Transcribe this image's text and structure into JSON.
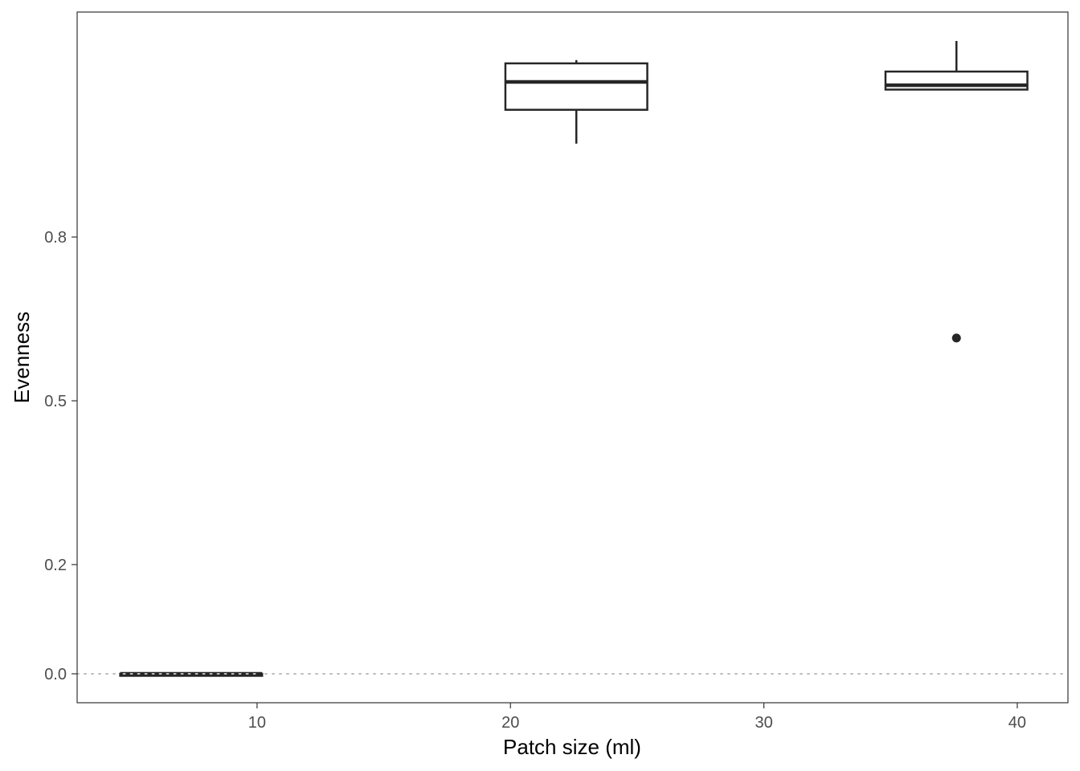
{
  "chart_data": {
    "type": "boxplot",
    "title": "",
    "xlabel": "Patch size (ml)",
    "ylabel": "Evenness",
    "xlim": [
      2.9,
      42.0
    ],
    "ylim": [
      -0.053,
      1.212
    ],
    "x_ticks": [
      10,
      20,
      30,
      40
    ],
    "y_ticks": [
      0.0,
      0.2,
      0.5,
      0.8
    ],
    "y_tick_labels": [
      "0.0",
      "0.2",
      "0.5",
      "0.8"
    ],
    "grid": false,
    "reference_line": {
      "y": 0.0,
      "style": "dotted",
      "color": "#bdbdbd"
    },
    "boxes": [
      {
        "x_min": 4.6,
        "x_max": 10.2,
        "x_center": 7.4,
        "lower_whisker": 0.0,
        "q1": 0.0,
        "median": 0.0,
        "q3": 0.0,
        "upper_whisker": 0.0,
        "outliers": []
      },
      {
        "x_min": 19.8,
        "x_max": 25.4,
        "x_center": 22.6,
        "lower_whisker": 0.971,
        "q1": 1.033,
        "median": 1.084,
        "q3": 1.118,
        "upper_whisker": 1.124,
        "outliers": []
      },
      {
        "x_min": 34.8,
        "x_max": 40.4,
        "x_center": 37.6,
        "lower_whisker": 1.07,
        "q1": 1.07,
        "median": 1.078,
        "q3": 1.103,
        "upper_whisker": 1.159,
        "outliers": [
          0.615
        ]
      }
    ],
    "colors": {
      "box_line": "#262626",
      "box_fill": "#ffffff",
      "panel_border": "#333333"
    }
  }
}
